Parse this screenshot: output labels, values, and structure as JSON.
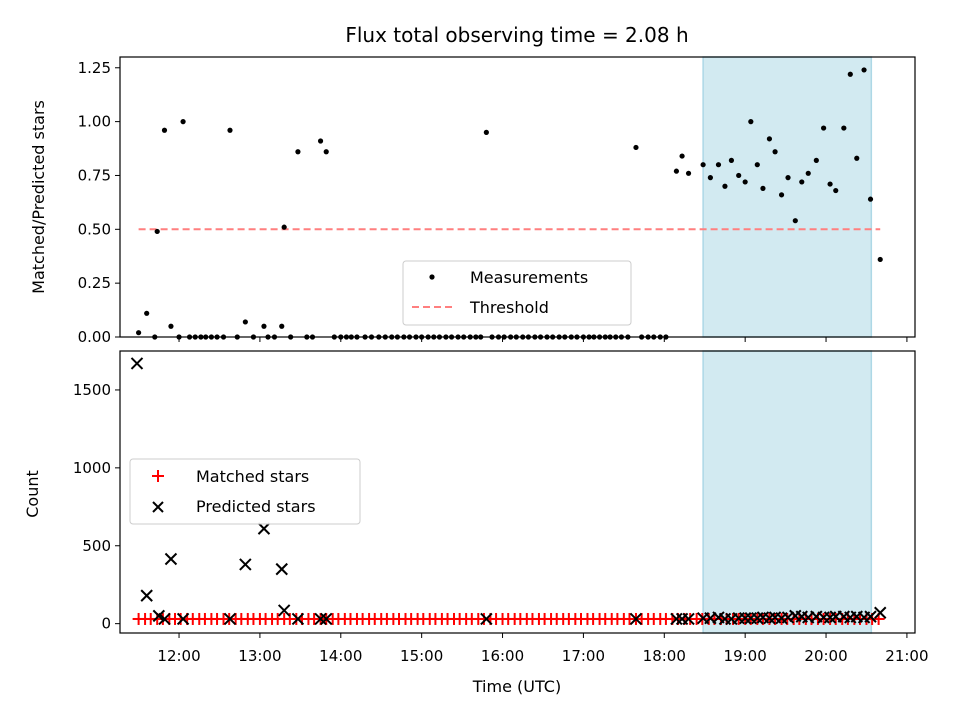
{
  "chart_data": {
    "type": "scatter",
    "title": "Flux total observing time = 2.08 h",
    "xlabel": "Time (UTC)",
    "x_ticks": [
      "12:00",
      "13:00",
      "14:00",
      "15:00",
      "16:00",
      "17:00",
      "18:00",
      "19:00",
      "20:00",
      "21:00"
    ],
    "x_tick_hours": [
      12,
      13,
      14,
      15,
      16,
      17,
      18,
      19,
      20,
      21
    ],
    "xlim_hours": [
      11.27,
      21.1
    ],
    "highlight_span_hours": [
      18.48,
      20.56
    ],
    "panels": [
      {
        "name": "ratio",
        "ylabel": "Matched/Predicted stars",
        "ylim": [
          0,
          1.3
        ],
        "y_ticks": [
          "0.00",
          "0.25",
          "0.50",
          "0.75",
          "1.00",
          "1.25"
        ],
        "y_tick_values": [
          0,
          0.25,
          0.5,
          0.75,
          1.0,
          1.25
        ],
        "threshold": {
          "label": "Threshold",
          "value": 0.5,
          "x_start": 11.5,
          "x_end": 20.67,
          "color": "#ff7f7f"
        },
        "series": [
          {
            "name": "Measurements",
            "color": "#000000",
            "points": [
              [
                11.5,
                0.02
              ],
              [
                11.6,
                0.11
              ],
              [
                11.7,
                0.0
              ],
              [
                11.73,
                0.49
              ],
              [
                11.82,
                0.96
              ],
              [
                11.9,
                0.05
              ],
              [
                12.0,
                0.0
              ],
              [
                12.05,
                1.0
              ],
              [
                12.13,
                0.0
              ],
              [
                12.2,
                0.0
              ],
              [
                12.27,
                0.0
              ],
              [
                12.33,
                0.0
              ],
              [
                12.4,
                0.0
              ],
              [
                12.47,
                0.0
              ],
              [
                12.55,
                0.0
              ],
              [
                12.63,
                0.96
              ],
              [
                12.72,
                0.0
              ],
              [
                12.82,
                0.07
              ],
              [
                12.92,
                0.0
              ],
              [
                13.05,
                0.05
              ],
              [
                13.1,
                0.0
              ],
              [
                13.18,
                0.0
              ],
              [
                13.27,
                0.05
              ],
              [
                13.3,
                0.51
              ],
              [
                13.38,
                0.0
              ],
              [
                13.47,
                0.86
              ],
              [
                13.58,
                0.0
              ],
              [
                13.65,
                0.0
              ],
              [
                13.75,
                0.91
              ],
              [
                13.82,
                0.86
              ],
              [
                13.92,
                0.0
              ],
              [
                14.0,
                0.0
              ],
              [
                14.07,
                0.0
              ],
              [
                14.13,
                0.0
              ],
              [
                14.2,
                0.0
              ],
              [
                14.3,
                0.0
              ],
              [
                14.38,
                0.0
              ],
              [
                14.47,
                0.0
              ],
              [
                14.55,
                0.0
              ],
              [
                14.63,
                0.0
              ],
              [
                14.7,
                0.0
              ],
              [
                14.78,
                0.0
              ],
              [
                14.85,
                0.0
              ],
              [
                14.93,
                0.0
              ],
              [
                15.0,
                0.0
              ],
              [
                15.08,
                0.0
              ],
              [
                15.15,
                0.0
              ],
              [
                15.22,
                0.0
              ],
              [
                15.3,
                0.0
              ],
              [
                15.37,
                0.0
              ],
              [
                15.45,
                0.0
              ],
              [
                15.52,
                0.0
              ],
              [
                15.6,
                0.0
              ],
              [
                15.67,
                0.0
              ],
              [
                15.73,
                0.0
              ],
              [
                15.8,
                0.95
              ],
              [
                15.87,
                0.0
              ],
              [
                15.95,
                0.0
              ],
              [
                16.02,
                0.0
              ],
              [
                16.1,
                0.0
              ],
              [
                16.17,
                0.0
              ],
              [
                16.25,
                0.0
              ],
              [
                16.32,
                0.0
              ],
              [
                16.4,
                0.0
              ],
              [
                16.47,
                0.0
              ],
              [
                16.55,
                0.0
              ],
              [
                16.62,
                0.0
              ],
              [
                16.7,
                0.0
              ],
              [
                16.77,
                0.0
              ],
              [
                16.85,
                0.0
              ],
              [
                16.92,
                0.0
              ],
              [
                17.0,
                0.0
              ],
              [
                17.07,
                0.0
              ],
              [
                17.13,
                0.0
              ],
              [
                17.2,
                0.0
              ],
              [
                17.27,
                0.0
              ],
              [
                17.33,
                0.0
              ],
              [
                17.4,
                0.0
              ],
              [
                17.47,
                0.0
              ],
              [
                17.55,
                0.0
              ],
              [
                17.65,
                0.88
              ],
              [
                17.72,
                0.0
              ],
              [
                17.8,
                0.0
              ],
              [
                17.87,
                0.0
              ],
              [
                17.95,
                0.0
              ],
              [
                18.02,
                0.0
              ],
              [
                18.15,
                0.77
              ],
              [
                18.22,
                0.84
              ],
              [
                18.3,
                0.76
              ],
              [
                18.48,
                0.8
              ],
              [
                18.57,
                0.74
              ],
              [
                18.67,
                0.8
              ],
              [
                18.75,
                0.7
              ],
              [
                18.83,
                0.82
              ],
              [
                18.92,
                0.75
              ],
              [
                19.0,
                0.72
              ],
              [
                19.07,
                1.0
              ],
              [
                19.15,
                0.8
              ],
              [
                19.22,
                0.69
              ],
              [
                19.3,
                0.92
              ],
              [
                19.37,
                0.86
              ],
              [
                19.45,
                0.66
              ],
              [
                19.53,
                0.74
              ],
              [
                19.62,
                0.54
              ],
              [
                19.7,
                0.72
              ],
              [
                19.78,
                0.76
              ],
              [
                19.88,
                0.82
              ],
              [
                19.97,
                0.97
              ],
              [
                20.05,
                0.71
              ],
              [
                20.12,
                0.68
              ],
              [
                20.22,
                0.97
              ],
              [
                20.3,
                1.22
              ],
              [
                20.38,
                0.83
              ],
              [
                20.47,
                1.24
              ],
              [
                20.55,
                0.64
              ],
              [
                20.67,
                0.36
              ]
            ]
          }
        ],
        "legend": [
          "Measurements",
          "Threshold"
        ]
      },
      {
        "name": "counts",
        "ylabel": "Count",
        "ylim": [
          -60,
          1750
        ],
        "y_ticks": [
          "0",
          "500",
          "1000",
          "1500"
        ],
        "y_tick_values": [
          0,
          500,
          1000,
          1500
        ],
        "series": [
          {
            "name": "Matched stars",
            "marker": "plus",
            "color": "#ff0000",
            "constant_value": 30,
            "x_values": [
              11.5,
              11.58,
              11.65,
              11.73,
              11.8,
              11.88,
              11.95,
              12.02,
              12.1,
              12.17,
              12.25,
              12.32,
              12.4,
              12.47,
              12.55,
              12.62,
              12.7,
              12.77,
              12.85,
              12.92,
              13.0,
              13.07,
              13.15,
              13.22,
              13.3,
              13.37,
              13.45,
              13.52,
              13.6,
              13.67,
              13.75,
              13.82,
              13.9,
              13.97,
              14.05,
              14.12,
              14.2,
              14.27,
              14.35,
              14.42,
              14.5,
              14.57,
              14.65,
              14.72,
              14.8,
              14.87,
              14.95,
              15.02,
              15.1,
              15.17,
              15.25,
              15.32,
              15.4,
              15.47,
              15.55,
              15.62,
              15.7,
              15.77,
              15.85,
              15.92,
              16.0,
              16.07,
              16.15,
              16.22,
              16.3,
              16.37,
              16.45,
              16.52,
              16.6,
              16.67,
              16.75,
              16.82,
              16.9,
              16.97,
              17.05,
              17.12,
              17.2,
              17.27,
              17.35,
              17.42,
              17.5,
              17.57,
              17.65,
              17.72,
              17.8,
              17.87,
              17.95,
              18.02,
              18.1,
              18.17,
              18.25,
              18.32,
              18.4,
              18.47,
              18.55,
              18.62,
              18.7,
              18.77,
              18.85,
              18.92,
              19.0,
              19.07,
              19.15,
              19.22,
              19.3,
              19.37,
              19.45,
              19.52,
              19.6,
              19.67,
              19.75,
              19.82,
              19.9,
              19.97,
              20.05,
              20.12,
              20.2,
              20.27,
              20.35,
              20.42,
              20.5,
              20.57,
              20.65
            ]
          },
          {
            "name": "Predicted stars",
            "marker": "x",
            "color": "#000000",
            "points": [
              [
                11.48,
                1670
              ],
              [
                11.6,
                180
              ],
              [
                11.75,
                50
              ],
              [
                11.82,
                30
              ],
              [
                11.9,
                415
              ],
              [
                12.05,
                30
              ],
              [
                12.63,
                30
              ],
              [
                12.82,
                380
              ],
              [
                13.05,
                610
              ],
              [
                13.27,
                350
              ],
              [
                13.3,
                85
              ],
              [
                13.47,
                30
              ],
              [
                13.75,
                30
              ],
              [
                13.82,
                30
              ],
              [
                15.8,
                30
              ],
              [
                17.65,
                30
              ],
              [
                18.15,
                30
              ],
              [
                18.22,
                30
              ],
              [
                18.3,
                30
              ],
              [
                18.48,
                35
              ],
              [
                18.57,
                35
              ],
              [
                18.67,
                40
              ],
              [
                18.75,
                30
              ],
              [
                18.83,
                30
              ],
              [
                18.92,
                35
              ],
              [
                19.0,
                35
              ],
              [
                19.07,
                35
              ],
              [
                19.15,
                35
              ],
              [
                19.22,
                40
              ],
              [
                19.3,
                35
              ],
              [
                19.37,
                40
              ],
              [
                19.45,
                35
              ],
              [
                19.53,
                40
              ],
              [
                19.62,
                50
              ],
              [
                19.7,
                45
              ],
              [
                19.78,
                40
              ],
              [
                19.88,
                45
              ],
              [
                19.97,
                40
              ],
              [
                20.05,
                40
              ],
              [
                20.12,
                45
              ],
              [
                20.22,
                45
              ],
              [
                20.3,
                40
              ],
              [
                20.38,
                45
              ],
              [
                20.47,
                40
              ],
              [
                20.55,
                45
              ],
              [
                20.67,
                70
              ]
            ]
          }
        ],
        "legend": [
          "Matched stars",
          "Predicted stars"
        ]
      }
    ],
    "colors": {
      "span_fill": "#add8e6",
      "threshold": "#ff7f7f",
      "matched": "#ff0000",
      "predicted": "#000000"
    }
  }
}
